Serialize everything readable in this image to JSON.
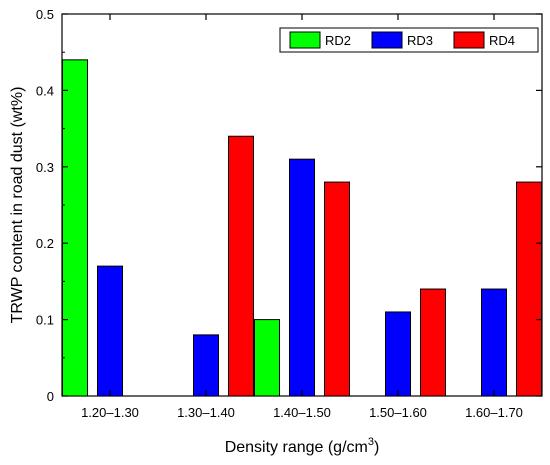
{
  "chart_data": {
    "type": "bar",
    "xlabel": "Density range (g/cm",
    "xlabel_superscript": "3",
    "xlabel_suffix": ")",
    "ylabel": "TRWP content in road dust (wt%)",
    "ylim": [
      0,
      0.5
    ],
    "yticks": [
      "0",
      "0.1",
      "0.2",
      "0.3",
      "0.4",
      "0.5"
    ],
    "categories": [
      "1.20–1.30",
      "1.30–1.40",
      "1.40–1.50",
      "1.50–1.60",
      "1.60–1.70"
    ],
    "series": [
      {
        "name": "RD2",
        "color": "#00ff00",
        "values": [
          0.44,
          0,
          0.1,
          0,
          0
        ]
      },
      {
        "name": "RD3",
        "color": "#0000ff",
        "values": [
          0.17,
          0.08,
          0.31,
          0.11,
          0.14
        ]
      },
      {
        "name": "RD4",
        "color": "#ff0000",
        "values": [
          0,
          0.34,
          0.28,
          0.14,
          0.28
        ]
      }
    ],
    "legend_position": "top-right",
    "grid": false
  }
}
